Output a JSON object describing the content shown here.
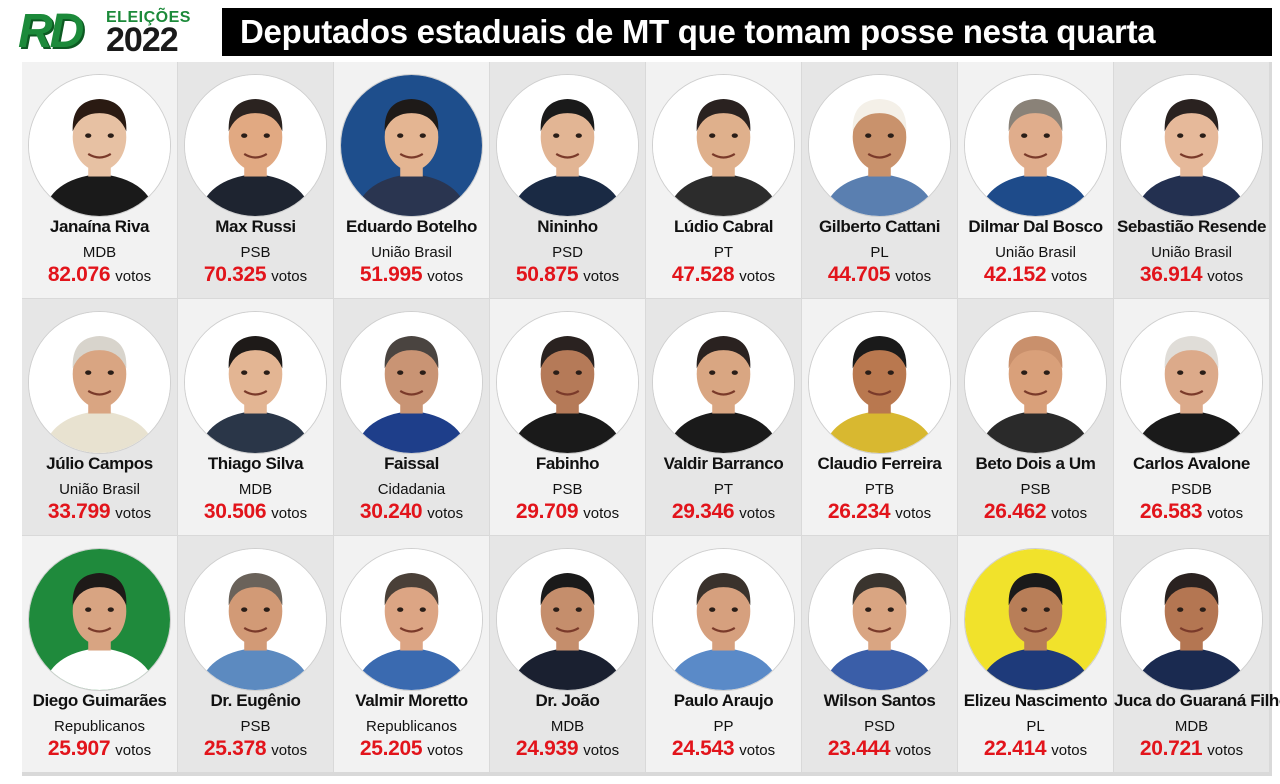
{
  "logo": {
    "brand": "RD",
    "label": "ELEIÇÕES",
    "year": "2022"
  },
  "title": "Deputados estaduais de MT que tomam posse nesta quarta",
  "votes_label": "votos",
  "colors": {
    "accent_green": "#1c8a3a",
    "votes_red": "#e2141b",
    "title_bg": "#000000"
  },
  "deputies": [
    {
      "name": "Janaína Riva",
      "party": "MDB",
      "votes": "82.076",
      "portrait_bg": "#ffffff",
      "skin": "#e7c1a3",
      "hair": "#2a1a12",
      "shirt": "#1a1a1a"
    },
    {
      "name": "Max Russi",
      "party": "PSB",
      "votes": "70.325",
      "portrait_bg": "#ffffff",
      "skin": "#e1a982",
      "hair": "#2b2320",
      "shirt": "#1e2430"
    },
    {
      "name": "Eduardo Botelho",
      "party": "União Brasil",
      "votes": "51.995",
      "portrait_bg": "#1e4e8c",
      "skin": "#e4b592",
      "hair": "#1e1a18",
      "shirt": "#2a3550"
    },
    {
      "name": "Nininho",
      "party": "PSD",
      "votes": "50.875",
      "portrait_bg": "#ffffff",
      "skin": "#e2b594",
      "hair": "#1a1a1a",
      "shirt": "#1a2a44"
    },
    {
      "name": "Lúdio Cabral",
      "party": "PT",
      "votes": "47.528",
      "portrait_bg": "#ffffff",
      "skin": "#dfb08c",
      "hair": "#2a2220",
      "shirt": "#2c2c2c"
    },
    {
      "name": "Gilberto Cattani",
      "party": "PL",
      "votes": "44.705",
      "portrait_bg": "#ffffff",
      "skin": "#c9926c",
      "hair": "#f4f0e8",
      "shirt": "#5a7fb0"
    },
    {
      "name": "Dilmar Dal Bosco",
      "party": "União Brasil",
      "votes": "42.152",
      "portrait_bg": "#ffffff",
      "skin": "#e0ad8c",
      "hair": "#8a8278",
      "shirt": "#1e4b8a"
    },
    {
      "name": "Sebastião Resende",
      "party": "União Brasil",
      "votes": "36.914",
      "portrait_bg": "#ffffff",
      "skin": "#e6b99a",
      "hair": "#2a2220",
      "shirt": "#233050"
    },
    {
      "name": "Júlio Campos",
      "party": "União Brasil",
      "votes": "33.799",
      "portrait_bg": "#ffffff",
      "skin": "#d9a582",
      "hair": "#d8d4cc",
      "shirt": "#e8e2d0"
    },
    {
      "name": "Thiago Silva",
      "party": "MDB",
      "votes": "30.506",
      "portrait_bg": "#ffffff",
      "skin": "#e3b593",
      "hair": "#1e1a18",
      "shirt": "#2a3648"
    },
    {
      "name": "Faissal",
      "party": "Cidadania",
      "votes": "30.240",
      "portrait_bg": "#ffffff",
      "skin": "#c99474",
      "hair": "#4a4440",
      "shirt": "#1e3e8a"
    },
    {
      "name": "Fabinho",
      "party": "PSB",
      "votes": "29.709",
      "portrait_bg": "#ffffff",
      "skin": "#b57a58",
      "hair": "#2a2220",
      "shirt": "#1a1a1a"
    },
    {
      "name": "Valdir Barranco",
      "party": "PT",
      "votes": "29.346",
      "portrait_bg": "#ffffff",
      "skin": "#d9a682",
      "hair": "#2a2220",
      "shirt": "#1a1a1a"
    },
    {
      "name": "Claudio Ferreira",
      "party": "PTB",
      "votes": "26.234",
      "portrait_bg": "#ffffff",
      "skin": "#b9784f",
      "hair": "#1a1a1a",
      "shirt": "#d8b830"
    },
    {
      "name": "Beto Dois a Um",
      "party": "PSB",
      "votes": "26.462",
      "portrait_bg": "#ffffff",
      "skin": "#d9a07a",
      "hair": "#c9906c",
      "shirt": "#2a2a2a"
    },
    {
      "name": "Carlos Avalone",
      "party": "PSDB",
      "votes": "26.583",
      "portrait_bg": "#ffffff",
      "skin": "#dcaa8a",
      "hair": "#e0ddd8",
      "shirt": "#1a1a1a"
    },
    {
      "name": "Diego Guimarães",
      "party": "Republicanos",
      "votes": "25.907",
      "portrait_bg": "#1f8a3c",
      "skin": "#d8a482",
      "hair": "#1e1a18",
      "shirt": "#ffffff"
    },
    {
      "name": "Dr. Eugênio",
      "party": "PSB",
      "votes": "25.378",
      "portrait_bg": "#ffffff",
      "skin": "#d29a76",
      "hair": "#6a625a",
      "shirt": "#5c8ac0"
    },
    {
      "name": "Valmir Moretto",
      "party": "Republicanos",
      "votes": "25.205",
      "portrait_bg": "#ffffff",
      "skin": "#dca584",
      "hair": "#4a4038",
      "shirt": "#3a6ab0"
    },
    {
      "name": "Dr. João",
      "party": "MDB",
      "votes": "24.939",
      "portrait_bg": "#ffffff",
      "skin": "#c58e6c",
      "hair": "#1a1a1a",
      "shirt": "#1a2030"
    },
    {
      "name": "Paulo Araujo",
      "party": "PP",
      "votes": "24.543",
      "portrait_bg": "#ffffff",
      "skin": "#d6a07e",
      "hair": "#3a322c",
      "shirt": "#5a8ac8"
    },
    {
      "name": "Wilson Santos",
      "party": "PSD",
      "votes": "23.444",
      "portrait_bg": "#ffffff",
      "skin": "#d9a582",
      "hair": "#3a342e",
      "shirt": "#3a5ea8"
    },
    {
      "name": "Elizeu Nascimento",
      "party": "PL",
      "votes": "22.414",
      "portrait_bg": "#f1e22b",
      "skin": "#b87e58",
      "hair": "#1a1a1a",
      "shirt": "#1e3a7a"
    },
    {
      "name": "Juca do Guaraná Filho",
      "party": "MDB",
      "votes": "20.721",
      "portrait_bg": "#ffffff",
      "skin": "#b47652",
      "hair": "#2a2220",
      "shirt": "#1a2a50"
    }
  ]
}
